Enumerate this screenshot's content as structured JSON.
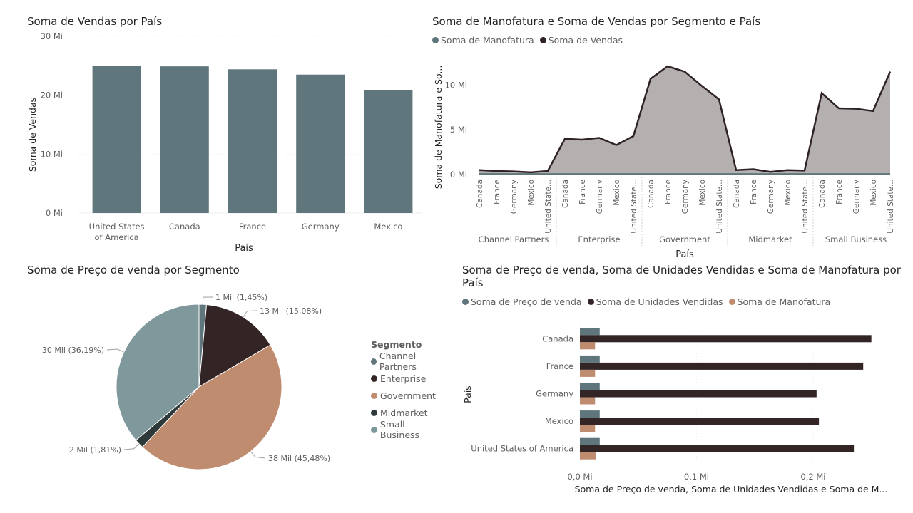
{
  "chart_data": [
    {
      "type": "bar",
      "title": "Soma de Vendas por País",
      "xlabel": "País",
      "ylabel": "Soma de Vendas",
      "categories": [
        "United States of America",
        "Canada",
        "France",
        "Germany",
        "Mexico"
      ],
      "category_lines": [
        [
          "United States",
          "of America"
        ],
        [
          "Canada"
        ],
        [
          "France"
        ],
        [
          "Germany"
        ],
        [
          "Mexico"
        ]
      ],
      "values": [
        25.0,
        24.9,
        24.4,
        23.5,
        20.9
      ],
      "ylim": [
        0,
        30
      ],
      "yticks": [
        "0 Mi",
        "10 Mi",
        "20 Mi",
        "30 Mi"
      ],
      "ytick_values": [
        0,
        10,
        20,
        30
      ],
      "color": "#5f777c",
      "grid": true
    },
    {
      "type": "area",
      "title": "Soma de Manofatura e Soma de Vendas por Segmento e País",
      "xlabel": "País",
      "ylabel": "Soma de Manofatura e So...",
      "legend_position": "top-left",
      "series": [
        {
          "name": "Soma de Manofatura",
          "color": "#5f777c",
          "values": [
            0.05,
            0.05,
            0.05,
            0.05,
            0.05,
            0.05,
            0.05,
            0.05,
            0.05,
            0.05,
            0.05,
            0.05,
            0.05,
            0.05,
            0.05,
            0.05,
            0.05,
            0.05,
            0.05,
            0.05,
            0.05,
            0.05,
            0.05,
            0.05,
            0.05
          ]
        },
        {
          "name": "Soma de Vendas",
          "color": "#2f2224",
          "values": [
            0.5,
            0.4,
            0.35,
            0.25,
            0.4,
            4.0,
            3.9,
            4.1,
            3.3,
            4.3,
            10.7,
            12.1,
            11.5,
            9.9,
            8.4,
            0.5,
            0.6,
            0.3,
            0.5,
            0.45,
            9.1,
            7.4,
            7.35,
            7.1,
            11.5
          ]
        }
      ],
      "x": [
        "Canada",
        "France",
        "Germany",
        "Mexico",
        "United State...",
        "Canada",
        "France",
        "Germany",
        "Mexico",
        "United State...",
        "Canada",
        "France",
        "Germany",
        "Mexico",
        "United State...",
        "Canada",
        "France",
        "Germany",
        "Mexico",
        "United State...",
        "Canada",
        "France",
        "Germany",
        "Mexico",
        "United State..."
      ],
      "groups": [
        "Channel Partners",
        "Enterprise",
        "Government",
        "Midmarket",
        "Small Business"
      ],
      "ylim": [
        0,
        12.5
      ],
      "yticks": [
        "0 Mi",
        "5 Mi",
        "10 Mi"
      ],
      "ytick_values": [
        0,
        5,
        10
      ],
      "fill_color": "#b3b0af"
    },
    {
      "type": "pie",
      "title": "Soma de Preço de venda por Segmento",
      "legend_title": "Segmento",
      "legend_position": "right",
      "slices": [
        {
          "name": "Channel Partners",
          "value": 1.45,
          "label": "1 Mil (1,45%)",
          "color": "#5f777c"
        },
        {
          "name": "Enterprise",
          "value": 15.08,
          "label": "13 Mil (15,08%)",
          "color": "#332425"
        },
        {
          "name": "Government",
          "value": 45.48,
          "label": "38 Mil (45,48%)",
          "color": "#c08c6f"
        },
        {
          "name": "Midmarket",
          "value": 1.81,
          "label": "2 Mil (1,81%)",
          "color": "#2e3a3a"
        },
        {
          "name": "Small Business",
          "value": 36.19,
          "label": "30 Mil (36,19%)",
          "color": "#7f989c"
        }
      ]
    },
    {
      "type": "bar",
      "orientation": "horizontal",
      "title": "Soma de Preço de venda, Soma de Unidades Vendidas e Soma de Manofatura por País",
      "title_lines": [
        "Soma de Preço de venda, Soma de Unidades Vendidas e Soma de Manofatura por",
        "País"
      ],
      "xlabel": "Soma de Preço de venda, Soma de Unidades Vendidas e Soma de M...",
      "ylabel": "País",
      "legend_position": "top-left",
      "categories": [
        "Canada",
        "France",
        "Germany",
        "Mexico",
        "United States of America"
      ],
      "series": [
        {
          "name": "Soma de Preço de venda",
          "color": "#5f777c",
          "values": [
            0.017,
            0.017,
            0.017,
            0.017,
            0.017
          ]
        },
        {
          "name": "Soma de Unidades Vendidas",
          "color": "#332425",
          "values": [
            0.25,
            0.243,
            0.203,
            0.205,
            0.235
          ]
        },
        {
          "name": "Soma de Manofatura",
          "color": "#c08c6f",
          "values": [
            0.013,
            0.013,
            0.013,
            0.013,
            0.014
          ]
        }
      ],
      "xlim": [
        0,
        0.26
      ],
      "xticks": [
        "0,0 Mi",
        "0,1 Mi",
        "0,2 Mi"
      ],
      "xtick_values": [
        0,
        0.1,
        0.2
      ]
    }
  ]
}
